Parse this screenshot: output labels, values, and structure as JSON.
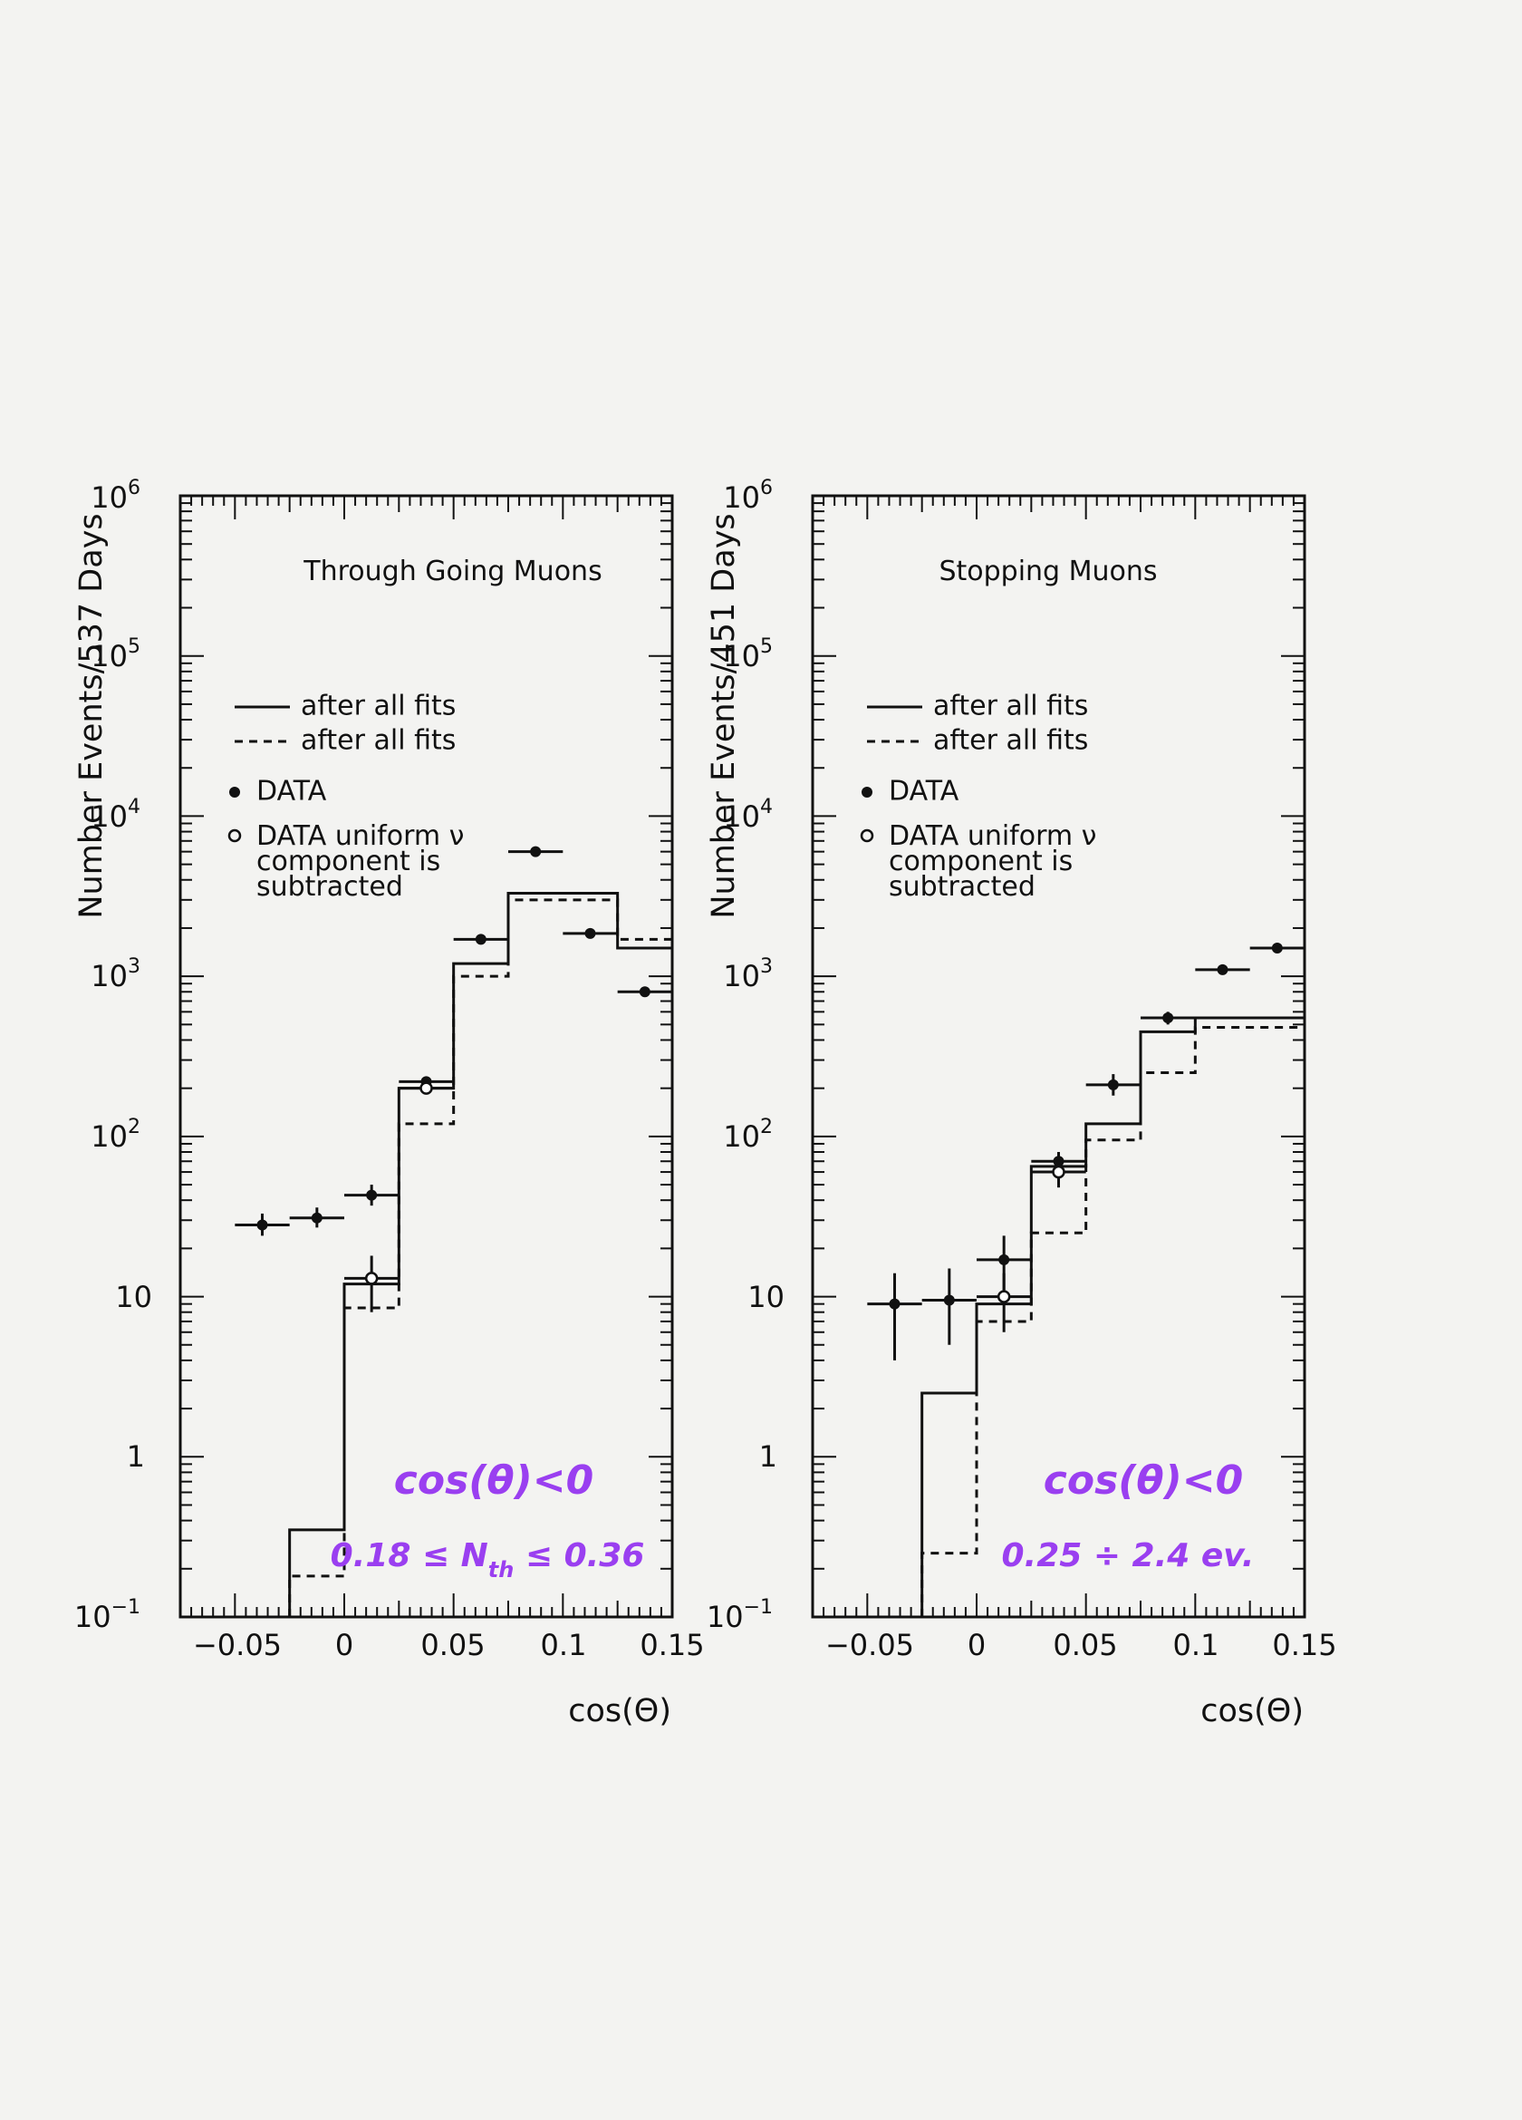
{
  "chart_data": [
    {
      "type": "histogram",
      "title": "Through Going Muons",
      "xlabel": "cos(Θ)",
      "ylabel": "Number Events/537 Days",
      "yscale": "log",
      "xlim": [
        -0.075,
        0.15
      ],
      "ylim": [
        0.1,
        1000000
      ],
      "xticks": [
        {
          "value": -0.05,
          "label": "−0.05"
        },
        {
          "value": 0,
          "label": "0"
        },
        {
          "value": 0.05,
          "label": "0.05"
        },
        {
          "value": 0.1,
          "label": "0.1"
        },
        {
          "value": 0.15,
          "label": "0.15"
        }
      ],
      "yticks": [
        {
          "value": 0.1,
          "base": "10",
          "exp": "−1"
        },
        {
          "value": 1,
          "base": "1",
          "exp": ""
        },
        {
          "value": 10,
          "base": "10",
          "exp": ""
        },
        {
          "value": 100,
          "base": "10",
          "exp": "2"
        },
        {
          "value": 1000,
          "base": "10",
          "exp": "3"
        },
        {
          "value": 10000,
          "base": "10",
          "exp": "4"
        },
        {
          "value": 100000,
          "base": "10",
          "exp": "5"
        },
        {
          "value": 1000000,
          "base": "10",
          "exp": "6"
        }
      ],
      "legend": {
        "solid": "after all fits",
        "dashed": "after all fits",
        "data": "DATA",
        "data_sub_lines": [
          "DATA uniform ν",
          "component is",
          "subtracted"
        ]
      },
      "bin_edges": [
        -0.025,
        0,
        0.025,
        0.05,
        0.075,
        0.125,
        0.15
      ],
      "series": [
        {
          "name": "after all fits (solid)",
          "style": "solid",
          "values": [
            0.35,
            12,
            200,
            1200,
            3300,
            1500
          ]
        },
        {
          "name": "after all fits (dashed)",
          "style": "dashed",
          "values": [
            0.18,
            8.5,
            120,
            1000,
            3000,
            1700
          ]
        },
        {
          "name": "DATA",
          "style": "filled",
          "points": [
            {
              "x": -0.0375,
              "y": 28,
              "lo": 24,
              "hi": 33
            },
            {
              "x": -0.0125,
              "y": 31,
              "lo": 27,
              "hi": 36
            },
            {
              "x": 0.0125,
              "y": 43,
              "lo": 37,
              "hi": 50
            },
            {
              "x": 0.0375,
              "y": 220,
              "lo": 205,
              "hi": 235
            },
            {
              "x": 0.0625,
              "y": 1700,
              "lo": 1650,
              "hi": 1750
            },
            {
              "x": 0.0875,
              "y": 6000,
              "lo": 5900,
              "hi": 6100
            },
            {
              "x": 0.1125,
              "y": 1850,
              "lo": 1800,
              "hi": 1900
            },
            {
              "x": 0.1375,
              "y": 800,
              "lo": 770,
              "hi": 830
            }
          ]
        },
        {
          "name": "DATA uniform ν component is subtracted",
          "style": "open",
          "points": [
            {
              "x": 0.0125,
              "y": 13,
              "lo": 8,
              "hi": 18
            },
            {
              "x": 0.0375,
              "y": 200,
              "lo": 185,
              "hi": 215
            }
          ]
        }
      ],
      "annotations": [
        "cos(θ)<0",
        "0.18 ≤ N",
        "th",
        " ≤ 0.36"
      ]
    },
    {
      "type": "histogram",
      "title": "Stopping Muons",
      "xlabel": "cos(Θ)",
      "ylabel": "Number Events/451 Days",
      "yscale": "log",
      "xlim": [
        -0.075,
        0.15
      ],
      "ylim": [
        0.1,
        1000000
      ],
      "xticks": [
        {
          "value": -0.05,
          "label": "−0.05"
        },
        {
          "value": 0,
          "label": "0"
        },
        {
          "value": 0.05,
          "label": "0.05"
        },
        {
          "value": 0.1,
          "label": "0.1"
        },
        {
          "value": 0.15,
          "label": "0.15"
        }
      ],
      "yticks": [
        {
          "value": 0.1,
          "base": "10",
          "exp": "−1"
        },
        {
          "value": 1,
          "base": "1",
          "exp": ""
        },
        {
          "value": 10,
          "base": "10",
          "exp": ""
        },
        {
          "value": 100,
          "base": "10",
          "exp": "2"
        },
        {
          "value": 1000,
          "base": "10",
          "exp": "3"
        },
        {
          "value": 10000,
          "base": "10",
          "exp": "4"
        },
        {
          "value": 100000,
          "base": "10",
          "exp": "5"
        },
        {
          "value": 1000000,
          "base": "10",
          "exp": "6"
        }
      ],
      "legend": {
        "solid": "after all fits",
        "dashed": "after all fits",
        "data": "DATA",
        "data_sub_lines": [
          "DATA uniform ν",
          "component is",
          "subtracted"
        ]
      },
      "bin_edges": [
        -0.025,
        0,
        0.025,
        0.05,
        0.075,
        0.1,
        0.15
      ],
      "series": [
        {
          "name": "after all fits (solid)",
          "style": "solid",
          "values": [
            2.5,
            9,
            65,
            120,
            450,
            550
          ]
        },
        {
          "name": "after all fits (dashed)",
          "style": "dashed",
          "values": [
            0.25,
            7,
            25,
            95,
            250,
            480
          ]
        },
        {
          "name": "DATA",
          "style": "filled",
          "points": [
            {
              "x": -0.0375,
              "y": 9,
              "lo": 4,
              "hi": 14
            },
            {
              "x": -0.0125,
              "y": 9.5,
              "lo": 5,
              "hi": 15
            },
            {
              "x": 0.0125,
              "y": 17,
              "lo": 11,
              "hi": 24
            },
            {
              "x": 0.0375,
              "y": 70,
              "lo": 60,
              "hi": 80
            },
            {
              "x": 0.0625,
              "y": 210,
              "lo": 180,
              "hi": 245
            },
            {
              "x": 0.0875,
              "y": 550,
              "lo": 500,
              "hi": 600
            },
            {
              "x": 0.1125,
              "y": 1100,
              "lo": 1060,
              "hi": 1140
            },
            {
              "x": 0.1375,
              "y": 1500,
              "lo": 1450,
              "hi": 1550
            }
          ]
        },
        {
          "name": "DATA uniform ν component is subtracted",
          "style": "open",
          "points": [
            {
              "x": 0.0125,
              "y": 10,
              "lo": 6,
              "hi": 14
            },
            {
              "x": 0.0375,
              "y": 60,
              "lo": 48,
              "hi": 72
            }
          ]
        }
      ],
      "annotations": [
        "cos(θ)<0",
        "0.25 ÷ 2.4 ev."
      ]
    }
  ],
  "colors": {
    "ink": "#111111",
    "handwriting": "#9a3ff0",
    "paper": "#f3f3f1"
  }
}
